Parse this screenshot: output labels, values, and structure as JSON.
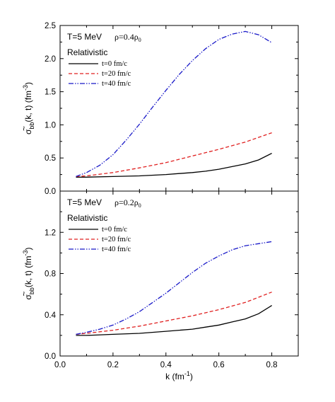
{
  "chart_data": [
    {
      "type": "line",
      "panel": "top",
      "annotation": {
        "temp": "T=5 MeV",
        "density": "ρ=0.4ρ",
        "density_sub": "0",
        "model": "Relativistic"
      },
      "ylabel": "σ̃bb(k, t) (fm⁻³)",
      "ylabel_main": "σ",
      "ylabel_sub": "bb",
      "ylabel_rest": "(k, t) (fm",
      "ylabel_sup": "-3",
      "ylabel_close": ")",
      "xlabel": "",
      "xlim": [
        0.0,
        0.9
      ],
      "ylim": [
        0.0,
        2.5
      ],
      "yticks": [
        "0.0",
        "0.5",
        "1.0",
        "1.5",
        "2.0",
        "2.5"
      ],
      "yticks_values": [
        0.0,
        0.5,
        1.0,
        1.5,
        2.0,
        2.5
      ],
      "series": [
        {
          "name": "t=0 fm/c",
          "style": "solid",
          "color": "#000000",
          "x": [
            0.06,
            0.1,
            0.2,
            0.3,
            0.4,
            0.5,
            0.55,
            0.6,
            0.65,
            0.7,
            0.75,
            0.8
          ],
          "y": [
            0.21,
            0.21,
            0.22,
            0.23,
            0.25,
            0.28,
            0.3,
            0.33,
            0.37,
            0.41,
            0.47,
            0.57
          ]
        },
        {
          "name": "t=20 fm/c",
          "style": "dashed",
          "color": "#e02020",
          "x": [
            0.06,
            0.1,
            0.2,
            0.3,
            0.4,
            0.5,
            0.6,
            0.7,
            0.8
          ],
          "y": [
            0.22,
            0.23,
            0.28,
            0.35,
            0.43,
            0.53,
            0.63,
            0.74,
            0.88
          ]
        },
        {
          "name": "t=40 fm/c",
          "style": "dashdotdot",
          "color": "#1818c8",
          "x": [
            0.06,
            0.1,
            0.15,
            0.2,
            0.25,
            0.3,
            0.35,
            0.4,
            0.45,
            0.5,
            0.55,
            0.6,
            0.65,
            0.7,
            0.75,
            0.8
          ],
          "y": [
            0.22,
            0.28,
            0.39,
            0.55,
            0.77,
            1.01,
            1.27,
            1.52,
            1.76,
            1.97,
            2.15,
            2.29,
            2.37,
            2.41,
            2.36,
            2.24
          ]
        }
      ]
    },
    {
      "type": "line",
      "panel": "bottom",
      "annotation": {
        "temp": "T=5 MeV",
        "density": "ρ=0.2ρ",
        "density_sub": "0",
        "model": "Relativistic"
      },
      "ylabel": "σ̃bb(k, t) (fm⁻³)",
      "ylabel_main": "σ",
      "ylabel_sub": "bb",
      "ylabel_rest": "(k, t) (fm",
      "ylabel_sup": "-3",
      "ylabel_close": ")",
      "xlabel": "k (fm⁻¹)",
      "xlabel_main": "k (fm",
      "xlabel_sup": "-1",
      "xlabel_close": ")",
      "xlim": [
        0.0,
        0.9
      ],
      "ylim": [
        0.0,
        1.6
      ],
      "xticks": [
        "0.0",
        "0.2",
        "0.4",
        "0.6",
        "0.8"
      ],
      "xticks_values": [
        0.0,
        0.2,
        0.4,
        0.6,
        0.8
      ],
      "yticks": [
        "0.0",
        "0.4",
        "0.8",
        "1.2"
      ],
      "yticks_values": [
        0.0,
        0.4,
        0.8,
        1.2
      ],
      "series": [
        {
          "name": "t=0 fm/c",
          "style": "solid",
          "color": "#000000",
          "x": [
            0.06,
            0.1,
            0.2,
            0.3,
            0.4,
            0.5,
            0.55,
            0.6,
            0.65,
            0.7,
            0.75,
            0.8
          ],
          "y": [
            0.2,
            0.2,
            0.21,
            0.22,
            0.24,
            0.26,
            0.28,
            0.3,
            0.33,
            0.36,
            0.41,
            0.49
          ]
        },
        {
          "name": "t=20 fm/c",
          "style": "dashed",
          "color": "#e02020",
          "x": [
            0.06,
            0.1,
            0.2,
            0.3,
            0.4,
            0.5,
            0.6,
            0.7,
            0.8
          ],
          "y": [
            0.21,
            0.22,
            0.25,
            0.29,
            0.34,
            0.39,
            0.45,
            0.52,
            0.62
          ]
        },
        {
          "name": "t=40 fm/c",
          "style": "dashdotdot",
          "color": "#1818c8",
          "x": [
            0.06,
            0.1,
            0.15,
            0.2,
            0.25,
            0.3,
            0.35,
            0.4,
            0.45,
            0.5,
            0.55,
            0.6,
            0.65,
            0.7,
            0.75,
            0.8
          ],
          "y": [
            0.21,
            0.23,
            0.26,
            0.3,
            0.36,
            0.43,
            0.52,
            0.61,
            0.71,
            0.81,
            0.9,
            0.97,
            1.03,
            1.07,
            1.09,
            1.11
          ]
        }
      ]
    }
  ],
  "colors": {
    "axis": "#000000",
    "t0": "#000000",
    "t20": "#e02020",
    "t40": "#1818c8"
  }
}
